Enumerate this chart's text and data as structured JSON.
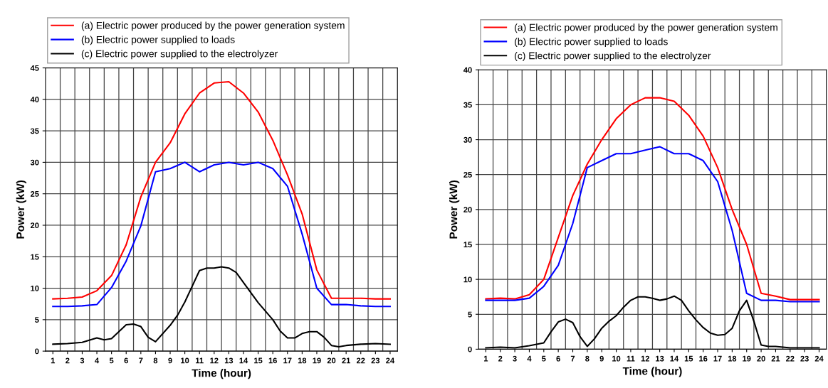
{
  "chart_data": [
    {
      "type": "line",
      "xlabel": "Time (hour)",
      "ylabel": "Power (kW)",
      "xlim": [
        0.5,
        24.5
      ],
      "xticks": [
        1,
        2,
        3,
        4,
        5,
        6,
        7,
        8,
        9,
        10,
        11,
        12,
        13,
        14,
        15,
        16,
        17,
        18,
        19,
        20,
        21,
        22,
        23,
        24
      ],
      "ylim": [
        0,
        45
      ],
      "yticks": [
        0,
        5,
        10,
        15,
        20,
        25,
        30,
        35,
        40,
        45
      ],
      "grid": true,
      "legend": "top",
      "x": [
        1,
        2,
        3,
        4,
        5,
        6,
        7,
        8,
        9,
        10,
        11,
        12,
        13,
        14,
        15,
        16,
        17,
        18,
        19,
        20,
        21,
        22,
        23,
        24
      ],
      "series": [
        {
          "name": "(a) Electric power produced by the power generation system",
          "color": "#ff0000",
          "values": [
            8.3,
            8.4,
            8.6,
            9.6,
            12,
            16.9,
            24.5,
            30,
            33.1,
            37.7,
            41,
            42.6,
            42.8,
            41,
            38,
            33.5,
            28,
            21.8,
            12.9,
            8.4,
            8.4,
            8.4,
            8.3,
            8.3
          ]
        },
        {
          "name": "(b) Electric power supplied to loads",
          "color": "#0000ff",
          "values": [
            7.1,
            7.1,
            7.2,
            7.4,
            10.1,
            14.3,
            19.9,
            28.5,
            29,
            30,
            28.5,
            29.6,
            30,
            29.6,
            30,
            29,
            26.2,
            18.6,
            10,
            7.4,
            7.4,
            7.2,
            7.1,
            7.1
          ]
        },
        {
          "name": "(c) Electric power supplied to the electrolyzer",
          "color": "#000000",
          "x": [
            1,
            2,
            3,
            4,
            4.5,
            5,
            5.5,
            6,
            6.5,
            7,
            7.5,
            8,
            9,
            9.5,
            10,
            10.5,
            11,
            11.5,
            12,
            12.5,
            13,
            13.5,
            14,
            15,
            16,
            16.5,
            17,
            17.5,
            18,
            18.5,
            19,
            19.5,
            20,
            20.5,
            21,
            22,
            23,
            24
          ],
          "values": [
            1.1,
            1.2,
            1.4,
            2.1,
            1.8,
            2,
            3.1,
            4.2,
            4.3,
            3.9,
            2.2,
            1.5,
            4.1,
            5.7,
            7.8,
            10.3,
            12.8,
            13.2,
            13.2,
            13.4,
            13.2,
            12.5,
            10.9,
            7.7,
            5,
            3.2,
            2.1,
            2.1,
            2.8,
            3.1,
            3.1,
            2.2,
            0.9,
            0.7,
            0.9,
            1.1,
            1.2,
            1.1
          ]
        }
      ]
    },
    {
      "type": "line",
      "xlabel": "Time (hour)",
      "ylabel": "Power (kW)",
      "xlim": [
        0.5,
        24.5
      ],
      "xticks": [
        1,
        2,
        3,
        4,
        5,
        6,
        7,
        8,
        9,
        10,
        11,
        12,
        13,
        14,
        15,
        16,
        17,
        18,
        19,
        20,
        21,
        22,
        23,
        24
      ],
      "ylim": [
        0,
        40
      ],
      "yticks": [
        0,
        5,
        10,
        15,
        20,
        25,
        30,
        35,
        40
      ],
      "grid": true,
      "legend": "top",
      "x": [
        1,
        2,
        3,
        4,
        5,
        6,
        7,
        8,
        9,
        10,
        11,
        12,
        13,
        14,
        15,
        16,
        17,
        18,
        19,
        20,
        21,
        22,
        23,
        24
      ],
      "series": [
        {
          "name": "(a) Electric power produced by the power generation system",
          "color": "#ff0000",
          "values": [
            7.2,
            7.3,
            7.2,
            7.8,
            10,
            16,
            22,
            26.5,
            30,
            33,
            35,
            36,
            36,
            35.5,
            33.5,
            30.5,
            26,
            20,
            15,
            8,
            7.6,
            7.1,
            7.1,
            7.1
          ]
        },
        {
          "name": "(b) Electric power supplied to loads",
          "color": "#0000ff",
          "values": [
            7,
            7,
            7,
            7.3,
            9,
            12,
            18,
            26,
            27,
            28,
            28,
            28.5,
            29,
            28,
            28,
            27,
            24,
            17,
            8,
            7,
            7,
            6.8,
            6.8,
            6.8
          ]
        },
        {
          "name": "(c) Electric power supplied to the electrolyzer",
          "color": "#000000",
          "x": [
            1,
            2,
            3,
            4,
            5,
            5.5,
            6,
            6.5,
            7,
            7.5,
            8,
            8.5,
            9,
            9.5,
            10,
            10.5,
            11,
            11.5,
            12,
            12.5,
            13,
            13.5,
            14,
            14.5,
            15,
            15.5,
            16,
            16.5,
            17,
            17.5,
            18,
            18.5,
            19,
            19.5,
            20,
            20.5,
            21,
            22,
            23,
            24
          ],
          "values": [
            0.2,
            0.3,
            0.2,
            0.5,
            0.9,
            2.5,
            3.9,
            4.3,
            3.8,
            1.8,
            0.4,
            1.5,
            3,
            4,
            4.8,
            6,
            7,
            7.5,
            7.5,
            7.3,
            7,
            7.2,
            7.6,
            7,
            5.5,
            4.2,
            3.1,
            2.3,
            2,
            2.1,
            3,
            5.5,
            7,
            4,
            0.6,
            0.4,
            0.4,
            0.2,
            0.2,
            0.2
          ]
        }
      ]
    }
  ]
}
